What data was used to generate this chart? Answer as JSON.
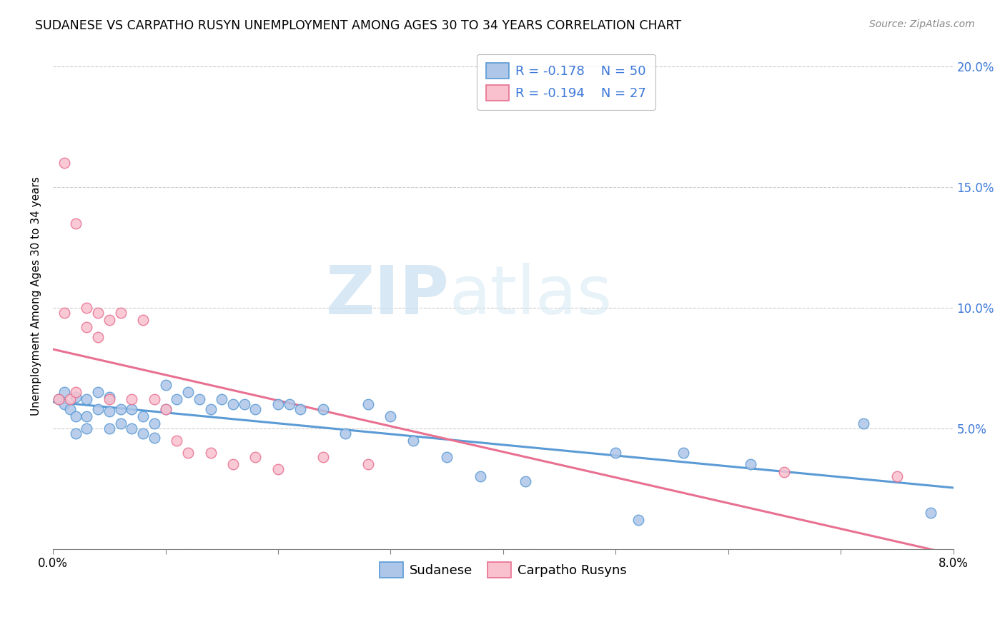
{
  "title": "SUDANESE VS CARPATHO RUSYN UNEMPLOYMENT AMONG AGES 30 TO 34 YEARS CORRELATION CHART",
  "source": "Source: ZipAtlas.com",
  "ylabel": "Unemployment Among Ages 30 to 34 years",
  "xlim": [
    0.0,
    0.08
  ],
  "ylim": [
    0.0,
    0.21
  ],
  "xticks": [
    0.0,
    0.01,
    0.02,
    0.03,
    0.04,
    0.05,
    0.06,
    0.07,
    0.08
  ],
  "xticklabels": [
    "0.0%",
    "",
    "",
    "",
    "",
    "",
    "",
    "",
    "8.0%"
  ],
  "yticks": [
    0.0,
    0.05,
    0.1,
    0.15,
    0.2
  ],
  "ylabels_left": [
    "",
    "",
    "",
    "",
    ""
  ],
  "ylabels_right": [
    "",
    "5.0%",
    "10.0%",
    "15.0%",
    "20.0%"
  ],
  "sudanese_x": [
    0.0005,
    0.001,
    0.001,
    0.0015,
    0.002,
    0.002,
    0.002,
    0.003,
    0.003,
    0.003,
    0.004,
    0.004,
    0.005,
    0.005,
    0.005,
    0.006,
    0.006,
    0.007,
    0.007,
    0.008,
    0.008,
    0.009,
    0.009,
    0.01,
    0.01,
    0.011,
    0.012,
    0.013,
    0.014,
    0.015,
    0.016,
    0.017,
    0.018,
    0.02,
    0.021,
    0.022,
    0.024,
    0.026,
    0.028,
    0.03,
    0.032,
    0.035,
    0.038,
    0.042,
    0.05,
    0.052,
    0.056,
    0.062,
    0.072,
    0.078
  ],
  "sudanese_y": [
    0.062,
    0.065,
    0.06,
    0.058,
    0.063,
    0.055,
    0.048,
    0.062,
    0.055,
    0.05,
    0.065,
    0.058,
    0.063,
    0.057,
    0.05,
    0.058,
    0.052,
    0.058,
    0.05,
    0.055,
    0.048,
    0.052,
    0.046,
    0.068,
    0.058,
    0.062,
    0.065,
    0.062,
    0.058,
    0.062,
    0.06,
    0.06,
    0.058,
    0.06,
    0.06,
    0.058,
    0.058,
    0.048,
    0.06,
    0.055,
    0.045,
    0.038,
    0.03,
    0.028,
    0.04,
    0.012,
    0.04,
    0.035,
    0.052,
    0.015
  ],
  "carpatho_x": [
    0.0005,
    0.001,
    0.001,
    0.0015,
    0.002,
    0.002,
    0.003,
    0.003,
    0.004,
    0.004,
    0.005,
    0.005,
    0.006,
    0.007,
    0.008,
    0.009,
    0.01,
    0.011,
    0.012,
    0.014,
    0.016,
    0.018,
    0.02,
    0.024,
    0.028,
    0.065,
    0.075
  ],
  "carpatho_y": [
    0.062,
    0.16,
    0.098,
    0.062,
    0.135,
    0.065,
    0.1,
    0.092,
    0.098,
    0.088,
    0.095,
    0.062,
    0.098,
    0.062,
    0.095,
    0.062,
    0.058,
    0.045,
    0.04,
    0.04,
    0.035,
    0.038,
    0.033,
    0.038,
    0.035,
    0.032,
    0.03
  ],
  "sudanese_color": "#aec6e8",
  "sudanese_edge_color": "#5b9bd5",
  "carpatho_color": "#f9c0ce",
  "carpatho_edge_color": "#e87090",
  "sudanese_line_color": "#5b9bd5",
  "carpatho_line_color": "#e87090",
  "legend_text_color": "#3c78d8",
  "legend_R_sudanese": "-0.178",
  "legend_N_sudanese": "50",
  "legend_R_carpatho": "-0.194",
  "legend_N_carpatho": "27",
  "watermark_zip": "ZIP",
  "watermark_atlas": "atlas",
  "background_color": "#ffffff",
  "grid_color": "#cccccc"
}
